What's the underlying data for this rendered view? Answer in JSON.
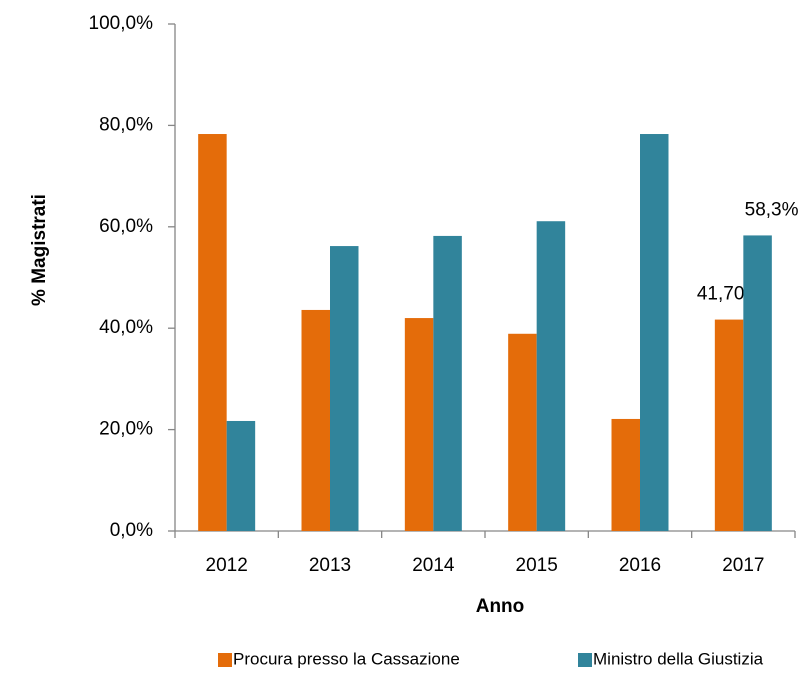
{
  "chart_data": {
    "type": "bar",
    "x_label": "Anno",
    "y_label": "% Magistrati",
    "categories": [
      "2012",
      "2013",
      "2014",
      "2015",
      "2016",
      "2017"
    ],
    "series": [
      {
        "name": "Procura presso la Cassazione",
        "color": "#E46C0A",
        "values": [
          78.3,
          43.6,
          42.0,
          38.9,
          22.1,
          41.7
        ],
        "value_labels": [
          null,
          null,
          null,
          null,
          null,
          "41,70%"
        ]
      },
      {
        "name": "Ministro della Giustizia",
        "color": "#31849B",
        "values": [
          21.7,
          56.2,
          58.2,
          61.1,
          78.3,
          58.3
        ],
        "value_labels": [
          null,
          null,
          null,
          null,
          null,
          "58,3%"
        ]
      }
    ],
    "ylim": [
      0,
      100
    ],
    "yticks": [
      {
        "value": 0,
        "label": "0,0%"
      },
      {
        "value": 20,
        "label": "20,0%"
      },
      {
        "value": 40,
        "label": "40,0%"
      },
      {
        "value": 60,
        "label": "60,0%"
      },
      {
        "value": 80,
        "label": "80,0%"
      },
      {
        "value": 100,
        "label": "100,0%"
      }
    ],
    "legend": "bottom"
  }
}
